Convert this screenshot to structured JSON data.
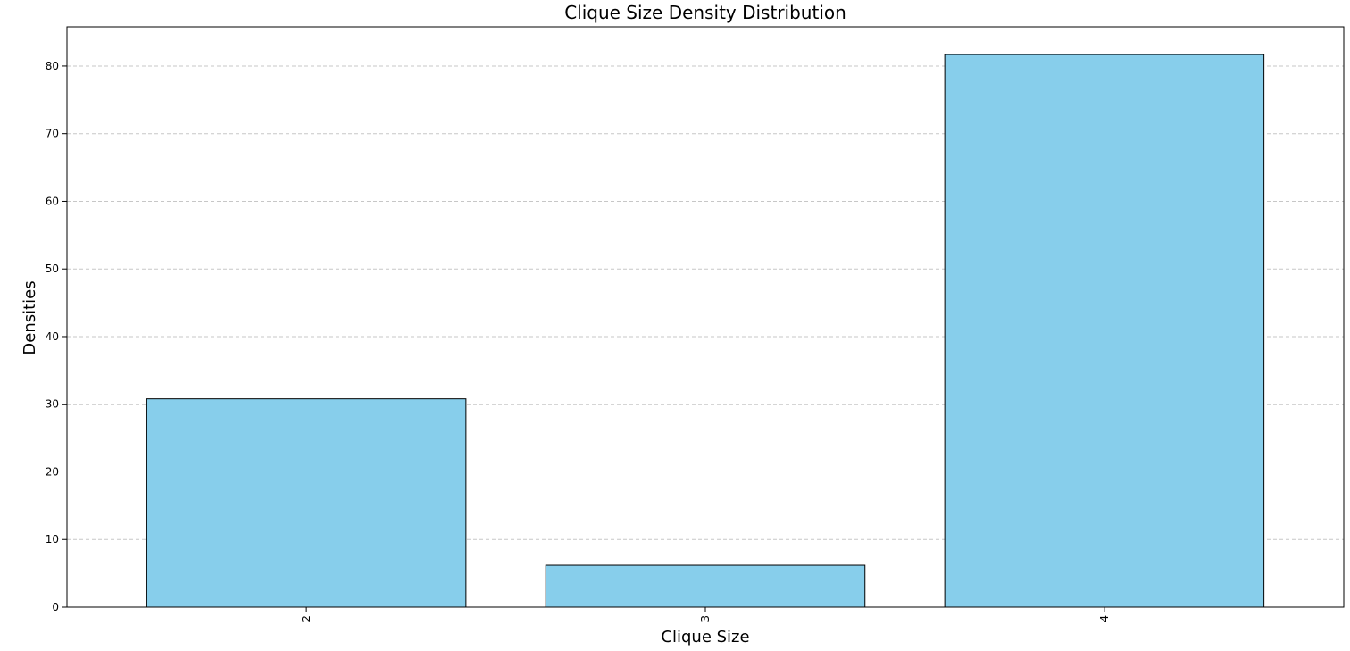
{
  "chart_data": {
    "type": "bar",
    "title": "Clique Size Density Distribution",
    "xlabel": "Clique Size",
    "ylabel": "Densities",
    "categories": [
      "2",
      "3",
      "4"
    ],
    "values": [
      30.8,
      6.2,
      81.7
    ],
    "ylim": [
      0,
      85.8
    ],
    "yticks": [
      0,
      10,
      20,
      30,
      40,
      50,
      60,
      70,
      80
    ],
    "ytick_labels": [
      "0",
      "10",
      "20",
      "30",
      "40",
      "50",
      "60",
      "70",
      "80"
    ],
    "bar_color": "#87ceeb",
    "edge_color": "#000000",
    "grid": "horizontal dashed",
    "xtick_rotation": "vertical"
  }
}
